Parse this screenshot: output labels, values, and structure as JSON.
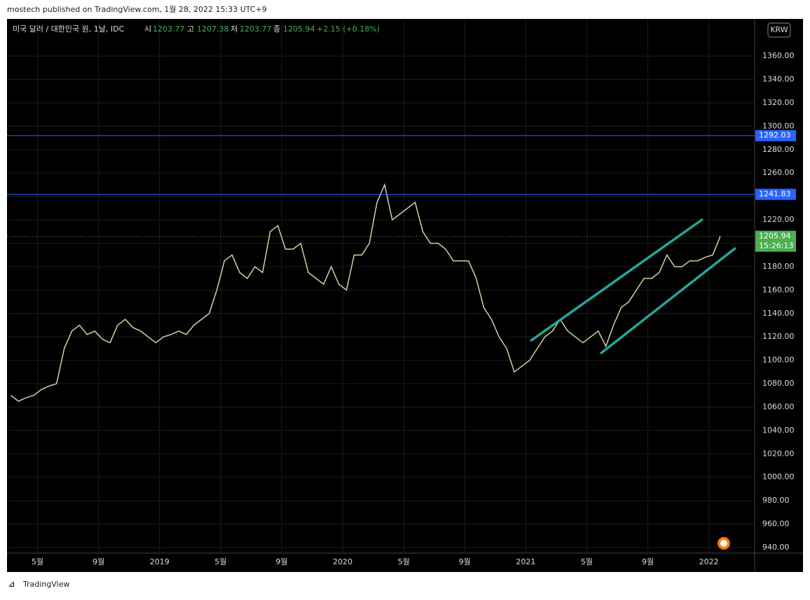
{
  "header": "mostech published on TradingView.com, 1월 28, 2022 15:33 UTC+9",
  "symbol": "미국 달러 / 대한민국 원, 1날, IDC",
  "ohlc": {
    "open_label": "시",
    "open": 1203.77,
    "high_label": "고",
    "high": 1207.38,
    "low_label": "저",
    "low": 1203.77,
    "close_label": "종",
    "close": 1205.94,
    "change": "+2.15 (+0.18%)"
  },
  "currency": "KRW",
  "footer": "TradingView",
  "chart_data": {
    "type": "line",
    "color": "#c9d6a3",
    "categories": [
      null,
      null,
      null,
      null,
      "5월",
      null,
      null,
      null,
      null,
      null,
      null,
      null,
      "9월",
      null,
      null,
      null,
      null,
      null,
      null,
      null,
      "2019",
      null,
      null,
      null,
      null,
      null,
      null,
      null,
      "5월",
      null,
      null,
      null,
      null,
      null,
      null,
      null,
      "9월",
      null,
      null,
      null,
      null,
      null,
      null,
      null,
      "2020",
      null,
      null,
      null,
      null,
      null,
      null,
      null,
      "5월",
      null,
      null,
      null,
      null,
      null,
      null,
      null,
      "9월",
      null,
      null,
      null,
      null,
      null,
      null,
      null,
      "2021",
      null,
      null,
      null,
      null,
      null,
      null,
      null,
      "5월",
      null,
      null,
      null,
      null,
      null,
      null,
      null,
      "9월",
      null,
      null,
      null,
      null,
      null,
      null,
      null,
      "2022",
      null,
      null,
      null,
      null,
      null
    ],
    "values": [
      1070,
      1065,
      1068,
      1070,
      1075,
      1078,
      1080,
      1110,
      1125,
      1130,
      1122,
      1125,
      1118,
      1115,
      1130,
      1135,
      1128,
      1125,
      1120,
      1115,
      1120,
      1122,
      1125,
      1122,
      1130,
      1135,
      1140,
      1160,
      1185,
      1190,
      1175,
      1170,
      1180,
      1175,
      1210,
      1215,
      1195,
      1195,
      1200,
      1175,
      1170,
      1165,
      1180,
      1165,
      1160,
      1190,
      1190,
      1200,
      1235,
      1250,
      1220,
      1225,
      1230,
      1235,
      1210,
      1200,
      1200,
      1195,
      1185,
      1185,
      1185,
      1170,
      1145,
      1135,
      1120,
      1110,
      1090,
      1095,
      1100,
      1110,
      1120,
      1125,
      1135,
      1125,
      1120,
      1115,
      1120,
      1125,
      1112,
      1130,
      1145,
      1150,
      1160,
      1170,
      1170,
      1175,
      1190,
      1180,
      1180,
      1185,
      1185,
      1188,
      1190,
      1205.94,
      null,
      null,
      null,
      null
    ],
    "ylim": [
      935.2,
      1390
    ],
    "yticks": [
      {
        "value": 940,
        "label": "940.00"
      },
      {
        "value": 960,
        "label": "960.00"
      },
      {
        "value": 980,
        "label": "980.00"
      },
      {
        "value": 1000,
        "label": "1000.00"
      },
      {
        "value": 1020,
        "label": "1020.00"
      },
      {
        "value": 1040,
        "label": "1040.00"
      },
      {
        "value": 1060,
        "label": "1060.00"
      },
      {
        "value": 1080,
        "label": "1080.00"
      },
      {
        "value": 1100,
        "label": "1100.00"
      },
      {
        "value": 1120,
        "label": "1120.00"
      },
      {
        "value": 1140,
        "label": "1140.00"
      },
      {
        "value": 1160,
        "label": "1160.00"
      },
      {
        "value": 1180,
        "label": "1180.00"
      },
      {
        "value": 1200,
        "label": "1200.00"
      },
      {
        "value": 1220,
        "label": "1220.00"
      },
      {
        "value": 1240,
        "label": "1240.00"
      },
      {
        "value": 1260,
        "label": "1260.00"
      },
      {
        "value": 1280,
        "label": "1280.00"
      },
      {
        "value": 1300,
        "label": "1300.00"
      },
      {
        "value": 1320,
        "label": "1320.00"
      },
      {
        "value": 1340,
        "label": "1340.00"
      },
      {
        "value": 1360,
        "label": "1360.00"
      }
    ],
    "grid": true,
    "price_lines": [
      {
        "value": 1292.03,
        "color": "#2962ff"
      },
      {
        "value": 1241.83,
        "color": "#2962ff"
      }
    ],
    "last_price": {
      "value": 1205.94,
      "countdown": "15:26:13",
      "color": "#4caf50"
    }
  }
}
